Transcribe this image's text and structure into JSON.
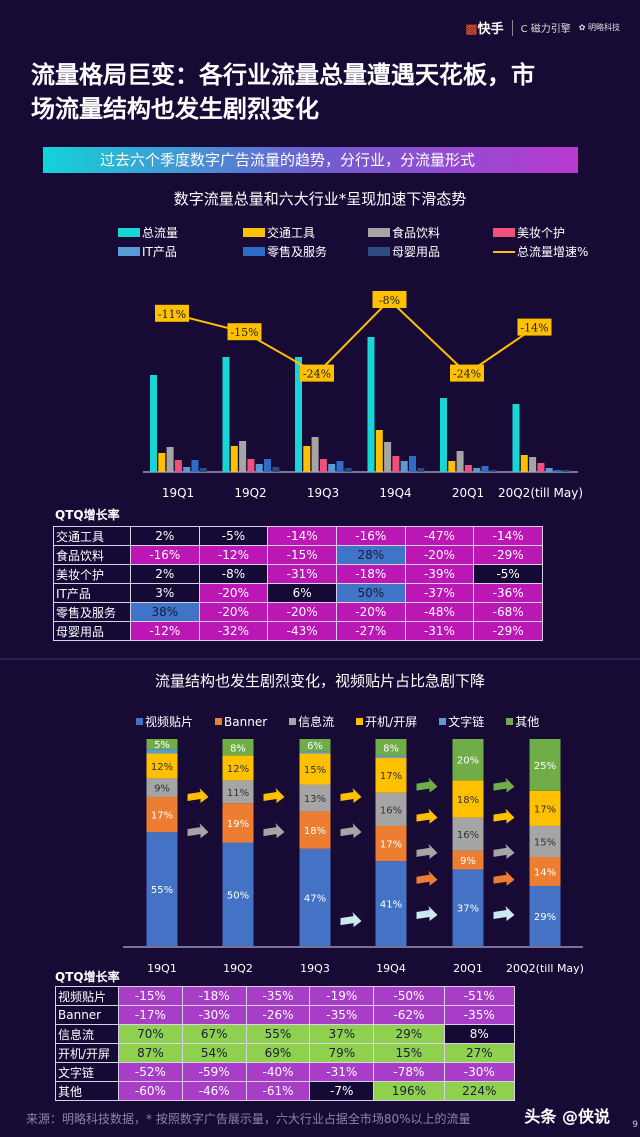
{
  "header": {
    "logo_kuaishou": "快手",
    "logo_cili": "磁力引擎",
    "logo_minglue": "明略科技",
    "title_line1": "流量格局巨变：各行业流量总量遭遇天花板，市",
    "title_line2": "场流量结构也发生剧烈变化"
  },
  "banner": "过去六个季度数字广告流量的趋势，分行业，分流量形式",
  "colors": {
    "background": "#170b36",
    "negative_cell": "#bb17b4",
    "neutral_cell": "#140a35",
    "positive_cell": "#3f74c8",
    "structure_negative": "#a83dc8",
    "structure_positive": "#8fd14f"
  },
  "chart_data": [
    {
      "type": "bar",
      "title": "数字流量总量和六大行业*呈现加速下滑态势",
      "categories": [
        "19Q1",
        "19Q2",
        "19Q3",
        "19Q4",
        "20Q1",
        "20Q2(till May)"
      ],
      "series": [
        {
          "name": "总流量",
          "color": "#18d6d6",
          "values": [
            97,
            115,
            115,
            135,
            74,
            68
          ]
        },
        {
          "name": "交通工具",
          "color": "#ffc000",
          "values": [
            19,
            26,
            26,
            42,
            11,
            17
          ]
        },
        {
          "name": "食品饮料",
          "color": "#a5a5a5",
          "values": [
            25,
            31,
            35,
            30,
            21,
            15
          ]
        },
        {
          "name": "美妆个护",
          "color": "#f0507a",
          "values": [
            12,
            13,
            13,
            16,
            7,
            9
          ]
        },
        {
          "name": "IT产品",
          "color": "#5b9bd5",
          "values": [
            5,
            8,
            8,
            11,
            4,
            4
          ]
        },
        {
          "name": "零售及服务",
          "color": "#2f6cc8",
          "values": [
            12,
            13,
            11,
            16,
            6,
            2
          ]
        },
        {
          "name": "母婴用品",
          "color": "#2e4a80",
          "values": [
            4,
            5,
            4,
            4,
            2,
            2
          ]
        }
      ],
      "line": {
        "name": "总流量增速%",
        "color": "#ffc000",
        "values": [
          -11,
          -15,
          -24,
          -8,
          -24,
          -14
        ],
        "labels": [
          "-11%",
          "-15%",
          "-24%",
          "-8%",
          "-24%",
          "-14%"
        ]
      }
    },
    {
      "type": "bar",
      "stacked": true,
      "percent": true,
      "title": "流量结构也发生剧烈变化，视频贴片占比急剧下降",
      "categories": [
        "19Q1",
        "19Q2",
        "19Q3",
        "19Q4",
        "20Q1",
        "20Q2(till  May)"
      ],
      "series": [
        {
          "name": "视频贴片",
          "color": "#4472c4",
          "values": [
            55,
            50,
            47,
            41,
            37,
            29
          ]
        },
        {
          "name": "Banner",
          "color": "#ed7d31",
          "values": [
            17,
            19,
            18,
            17,
            9,
            14
          ]
        },
        {
          "name": "信息流",
          "color": "#a5a5a5",
          "values": [
            9,
            11,
            13,
            16,
            16,
            15
          ]
        },
        {
          "name": "开机/开屏",
          "color": "#ffc000",
          "values": [
            12,
            12,
            15,
            17,
            18,
            17
          ]
        },
        {
          "name": "文字链",
          "color": "#5b9bd5",
          "values": [
            null,
            null,
            null,
            null,
            null,
            null
          ]
        },
        {
          "name": "其他",
          "color": "#70ad47",
          "values": [
            5,
            8,
            6,
            8,
            20,
            25
          ]
        }
      ]
    }
  ],
  "table1": {
    "caption": "QTQ增长率",
    "rows": [
      {
        "label": "交通工具",
        "cells": [
          [
            "2%",
            "n"
          ],
          [
            "-5%",
            "n"
          ],
          [
            "-14%",
            "m"
          ],
          [
            "-16%",
            "m"
          ],
          [
            "-47%",
            "m"
          ],
          [
            "-14%",
            "m"
          ]
        ]
      },
      {
        "label": "食品饮料",
        "cells": [
          [
            "-16%",
            "m"
          ],
          [
            "-12%",
            "m"
          ],
          [
            "-15%",
            "m"
          ],
          [
            "28%",
            "b"
          ],
          [
            "-20%",
            "m"
          ],
          [
            "-29%",
            "m"
          ]
        ]
      },
      {
        "label": "美妆个护",
        "cells": [
          [
            "2%",
            "n"
          ],
          [
            "-8%",
            "n"
          ],
          [
            "-31%",
            "m"
          ],
          [
            "-18%",
            "m"
          ],
          [
            "-39%",
            "m"
          ],
          [
            "-5%",
            "n"
          ]
        ]
      },
      {
        "label": "IT产品",
        "cells": [
          [
            "3%",
            "n"
          ],
          [
            "-20%",
            "m"
          ],
          [
            "6%",
            "n"
          ],
          [
            "50%",
            "b"
          ],
          [
            "-37%",
            "m"
          ],
          [
            "-36%",
            "m"
          ]
        ]
      },
      {
        "label": "零售及服务",
        "cells": [
          [
            "38%",
            "b"
          ],
          [
            "-20%",
            "m"
          ],
          [
            "-20%",
            "m"
          ],
          [
            "-20%",
            "m"
          ],
          [
            "-48%",
            "m"
          ],
          [
            "-68%",
            "m"
          ]
        ]
      },
      {
        "label": "母婴用品",
        "cells": [
          [
            "-12%",
            "m"
          ],
          [
            "-32%",
            "m"
          ],
          [
            "-43%",
            "m"
          ],
          [
            "-27%",
            "m"
          ],
          [
            "-31%",
            "m"
          ],
          [
            "-29%",
            "m"
          ]
        ]
      }
    ]
  },
  "table2": {
    "caption": "QTQ增长率",
    "rows": [
      {
        "label": "视频贴片",
        "cells": [
          [
            "-15%",
            "p"
          ],
          [
            "-18%",
            "p"
          ],
          [
            "-35%",
            "p"
          ],
          [
            "-19%",
            "p"
          ],
          [
            "-50%",
            "p"
          ],
          [
            "-51%",
            "p"
          ]
        ]
      },
      {
        "label": "Banner",
        "cells": [
          [
            "-17%",
            "p"
          ],
          [
            "-30%",
            "p"
          ],
          [
            "-26%",
            "p"
          ],
          [
            "-35%",
            "p"
          ],
          [
            "-62%",
            "p"
          ],
          [
            "-35%",
            "p"
          ]
        ]
      },
      {
        "label": "信息流",
        "cells": [
          [
            "70%",
            "g"
          ],
          [
            "67%",
            "g"
          ],
          [
            "55%",
            "g"
          ],
          [
            "37%",
            "g"
          ],
          [
            "29%",
            "g"
          ],
          [
            "8%",
            "n"
          ]
        ]
      },
      {
        "label": "开机/开屏",
        "cells": [
          [
            "87%",
            "g"
          ],
          [
            "54%",
            "g"
          ],
          [
            "69%",
            "g"
          ],
          [
            "79%",
            "g"
          ],
          [
            "15%",
            "g"
          ],
          [
            "27%",
            "g"
          ]
        ]
      },
      {
        "label": "文字链",
        "cells": [
          [
            "-52%",
            "p"
          ],
          [
            "-59%",
            "p"
          ],
          [
            "-40%",
            "p"
          ],
          [
            "-31%",
            "p"
          ],
          [
            "-78%",
            "p"
          ],
          [
            "-30%",
            "p"
          ]
        ]
      },
      {
        "label": "其他",
        "cells": [
          [
            "-60%",
            "p"
          ],
          [
            "-46%",
            "p"
          ],
          [
            "-61%",
            "p"
          ],
          [
            "-7%",
            "n"
          ],
          [
            "196%",
            "g"
          ],
          [
            "224%",
            "g"
          ]
        ]
      }
    ]
  },
  "footer": {
    "source": "来源：明略科技数据，* 按照数字广告展示量，六大行业占据全市场80%以上的流量",
    "watermark": "头条 @侠说",
    "page": "9"
  }
}
